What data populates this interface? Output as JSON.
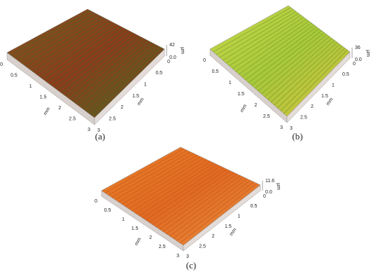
{
  "panels": [
    {
      "label": "(a)",
      "z_max": "42",
      "z_min": "0.0",
      "z_unit": "µm",
      "x_ticks": [
        "0",
        "0.5",
        "1",
        "1.5",
        "2",
        "2.5",
        "3"
      ],
      "x_unit": "mm",
      "y_ticks": [
        "3",
        "2.5",
        "2",
        "1.5",
        "1",
        "0.5",
        "0"
      ],
      "y_unit": "mm"
    },
    {
      "label": "(b)",
      "z_max": "36",
      "z_min": "0.0",
      "z_unit": "µm",
      "x_ticks": [
        "0",
        "0.5",
        "1",
        "1.5",
        "2",
        "2.5",
        "3"
      ],
      "x_unit": "mm",
      "y_ticks": [
        "3",
        "2.5",
        "2",
        "1.5",
        "1",
        "0.5",
        "0"
      ],
      "y_unit": "mm"
    },
    {
      "label": "(c)",
      "z_max": "11.6",
      "z_min": "0.0",
      "z_unit": "µm",
      "x_ticks": [
        "0",
        "0.5",
        "1",
        "1.5",
        "2",
        "2.5",
        "3"
      ],
      "x_unit": "mm",
      "y_ticks": [
        "3",
        "2.5",
        "2",
        "1.5",
        "1",
        "0.5",
        "0"
      ],
      "y_unit": "mm"
    }
  ]
}
